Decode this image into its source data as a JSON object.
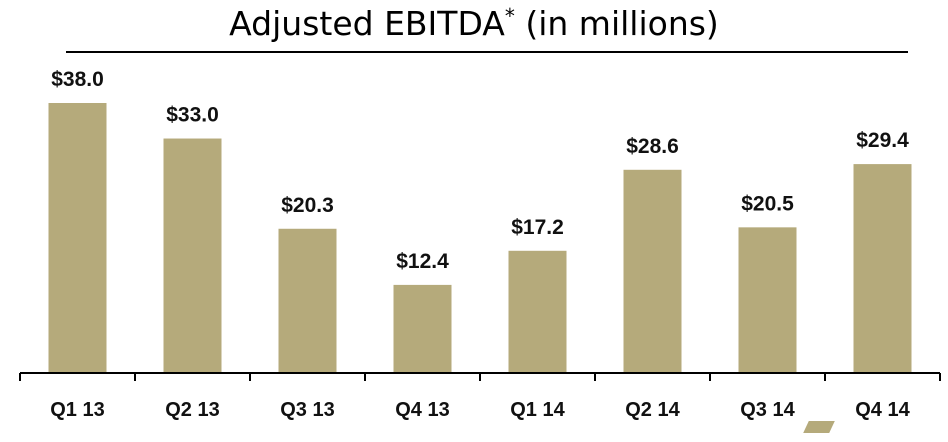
{
  "chart_data": {
    "type": "bar",
    "title": "Adjusted EBITDA",
    "title_mark": "*",
    "title_suffix": "(in millions)",
    "categories": [
      "Q1 13",
      "Q2 13",
      "Q3 13",
      "Q4 13",
      "Q1 14",
      "Q2 14",
      "Q3 14",
      "Q4 14"
    ],
    "values": [
      38.0,
      33.0,
      20.3,
      12.4,
      17.2,
      28.6,
      20.5,
      29.4
    ],
    "value_labels": [
      "$38.0",
      "$33.0",
      "$20.3",
      "$12.4",
      "$17.2",
      "$28.6",
      "$20.5",
      "$29.4"
    ],
    "xlabel": "",
    "ylabel": "",
    "ylim": [
      0,
      38.0
    ],
    "grid": false,
    "bar_color": "#b5aa7b"
  }
}
